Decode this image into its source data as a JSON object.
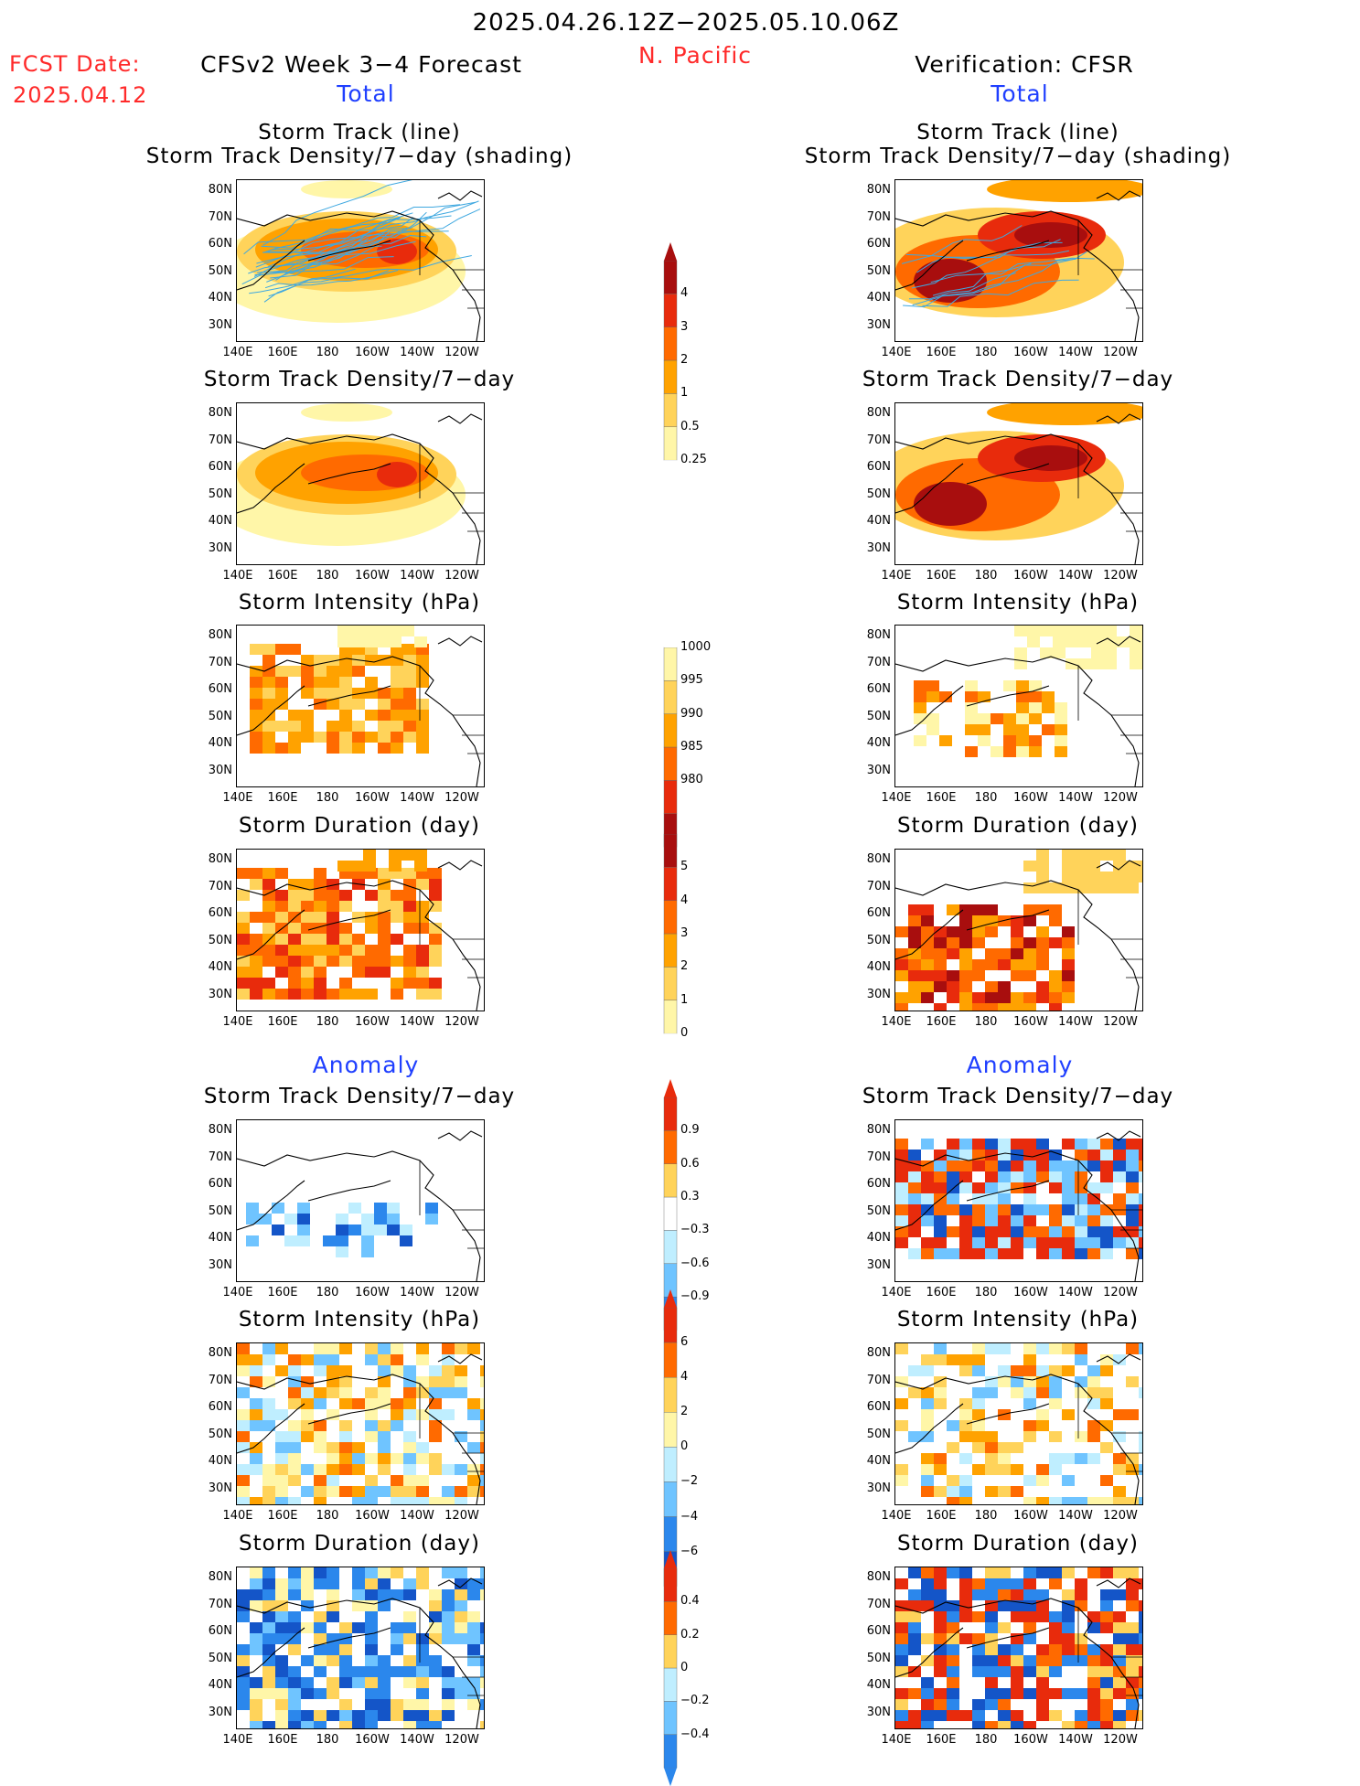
{
  "header": {
    "date_range": "2025.04.26.12Z−2025.05.10.06Z",
    "region": "N. Pacific",
    "fcst_label": "FCST Date:",
    "fcst_date": "2025.04.12",
    "left_title": "CFSv2 Week 3−4 Forecast",
    "right_title": "Verification: CFSR",
    "left_subtitle": "Total",
    "right_subtitle": "Total",
    "anomaly_left": "Anomaly",
    "anomaly_right": "Anomaly"
  },
  "panel_titles": {
    "track_line": "Storm Track (line)",
    "track_shading": "Storm Track Density/7−day (shading)",
    "density": "Storm Track Density/7−day",
    "intensity": "Storm Intensity (hPa)",
    "duration": "Storm Duration (day)"
  },
  "axes": {
    "lat_labels": [
      "80N",
      "70N",
      "60N",
      "50N",
      "40N",
      "30N"
    ],
    "lon_labels": [
      "140E",
      "160E",
      "180",
      "160W",
      "140W",
      "120W"
    ]
  },
  "colorbars": {
    "density_total": [
      "4",
      "3",
      "2",
      "1",
      "0.5",
      "0.25"
    ],
    "intensity_total": [
      "1000",
      "995",
      "990",
      "985",
      "980"
    ],
    "duration_total": [
      "5",
      "4",
      "3",
      "2",
      "1",
      "0"
    ],
    "density_anom": [
      "0.9",
      "0.6",
      "0.3",
      "−0.3",
      "−0.6",
      "−0.9"
    ],
    "intensity_anom": [
      "6",
      "4",
      "2",
      "0",
      "−2",
      "−4",
      "−6"
    ],
    "duration_anom": [
      "0.4",
      "0.2",
      "0",
      "−0.2",
      "−0.4"
    ]
  },
  "colors": {
    "pos": [
      "#fff6a8",
      "#ffd35a",
      "#ffa200",
      "#ff6a00",
      "#e82b0c",
      "#a80e0e"
    ],
    "neg": [
      "#bfeeff",
      "#6fc4ff",
      "#2b87ec",
      "#1455c8"
    ],
    "track_line": "#3fa8e0",
    "region_text": "#ff2a2a",
    "subtitle_text": "#1f3fff"
  }
}
